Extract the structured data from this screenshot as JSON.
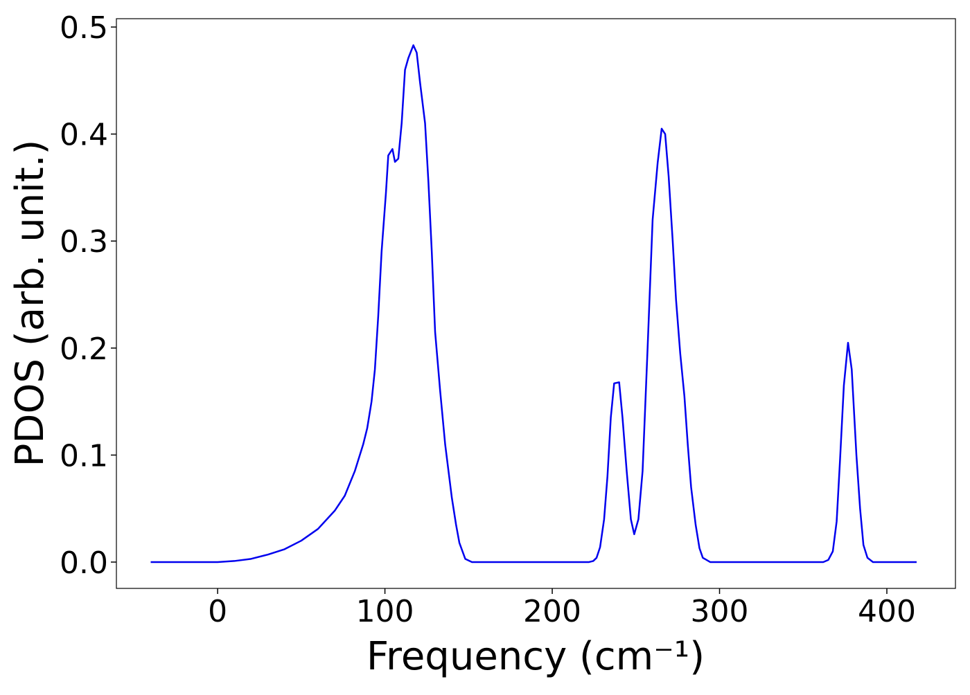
{
  "chart_data": {
    "type": "line",
    "xlabel": "Frequency (cm⁻¹)",
    "ylabel": "PDOS (arb. unit.)",
    "xlim": [
      -60.5,
      441
    ],
    "ylim": [
      -0.0246,
      0.5078
    ],
    "xticks": [
      0,
      100,
      200,
      300,
      400
    ],
    "yticks": [
      {
        "value": 0,
        "label": "0.0"
      },
      0.1,
      0.2,
      0.3,
      0.4,
      0.5
    ],
    "grid": false,
    "series": [
      {
        "color": "#0000ee",
        "x": [
          -40,
          0,
          10,
          20,
          30,
          40,
          50,
          60,
          70,
          76,
          82,
          87,
          89.4,
          92,
          94,
          96,
          98,
          100.6,
          102,
          104.5,
          106,
          108,
          110,
          112,
          114,
          117,
          119,
          121,
          124,
          126,
          128,
          130,
          133,
          136,
          140,
          142.5,
          144.5,
          148,
          152,
          222,
          224.5,
          226.5,
          228.6,
          231,
          233,
          235,
          237,
          240,
          242,
          244.5,
          247,
          249,
          251.5,
          254,
          257,
          260,
          263,
          265.4,
          267.5,
          269.6,
          272,
          274,
          276.5,
          279,
          281,
          283,
          285.7,
          288,
          290,
          294.4,
          362,
          365,
          367.7,
          370,
          372,
          374.3,
          376.8,
          379,
          381.8,
          384,
          386,
          388.4,
          391.7,
          417.8
        ],
        "values": [
          0,
          0,
          0.001,
          0.003,
          0.007,
          0.012,
          0.02,
          0.031,
          0.048,
          0.062,
          0.085,
          0.11,
          0.125,
          0.15,
          0.18,
          0.23,
          0.29,
          0.345,
          0.38,
          0.386,
          0.374,
          0.377,
          0.41,
          0.46,
          0.471,
          0.483,
          0.476,
          0.448,
          0.41,
          0.355,
          0.29,
          0.215,
          0.16,
          0.11,
          0.06,
          0.035,
          0.018,
          0.003,
          0,
          0,
          0.001,
          0.004,
          0.014,
          0.04,
          0.08,
          0.135,
          0.167,
          0.168,
          0.135,
          0.085,
          0.04,
          0.026,
          0.04,
          0.085,
          0.2,
          0.32,
          0.373,
          0.405,
          0.4,
          0.36,
          0.3,
          0.245,
          0.195,
          0.155,
          0.11,
          0.07,
          0.035,
          0.013,
          0.004,
          0,
          0,
          0.002,
          0.01,
          0.038,
          0.095,
          0.165,
          0.205,
          0.18,
          0.1,
          0.05,
          0.016,
          0.004,
          0,
          0
        ]
      }
    ]
  }
}
